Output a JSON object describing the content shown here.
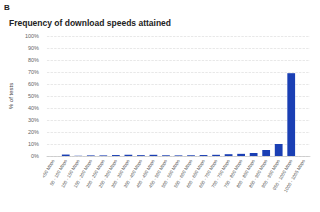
{
  "chart_data": {
    "type": "bar",
    "title": "Frequency of download speeds attained",
    "annotations": [
      "B"
    ],
    "categories": [
      "<50 Mbps",
      "50 - 100 Mbps",
      "100 - 150 Mbps",
      "150 - 200 Mbps",
      "200 - 250 Mbps",
      "250 - 300 Mbps",
      "300 - 350 Mbps",
      "350 - 400 Mbps",
      "400 - 450 Mbps",
      "450 - 500 Mbps",
      "500 - 550 Mbps",
      "550 - 600 Mbps",
      "600 - 650 Mbps",
      "650 - 700 Mbps",
      "700 - 750 Mbps",
      "750 - 800 Mbps",
      "800 - 850 Mbps",
      "850 - 900 Mbps",
      "900 - 950 Mbps",
      "950 - 1000 Mbps",
      "1000 - 1005 Mbps"
    ],
    "values": [
      0,
      1.2,
      0.2,
      0.5,
      0.5,
      0.8,
      1,
      0.7,
      1,
      0.6,
      0.5,
      0.6,
      0.8,
      1,
      1.5,
      1.8,
      2.5,
      5,
      10,
      69,
      0
    ],
    "color": "#1a3fb4",
    "ylabel": "% of tests",
    "ylim": [
      0,
      100
    ],
    "yticks": [
      {
        "value": 0,
        "label": "0%"
      },
      {
        "value": 10,
        "label": "10%"
      },
      {
        "value": 20,
        "label": "20%"
      },
      {
        "value": 30,
        "label": "30%"
      },
      {
        "value": 40,
        "label": "40%"
      },
      {
        "value": 50,
        "label": "50%"
      },
      {
        "value": 60,
        "label": "60%"
      },
      {
        "value": 70,
        "label": "70%"
      },
      {
        "value": 80,
        "label": "80%"
      },
      {
        "value": 90,
        "label": "90%"
      },
      {
        "value": 100,
        "label": "100%"
      }
    ],
    "grid": true
  }
}
